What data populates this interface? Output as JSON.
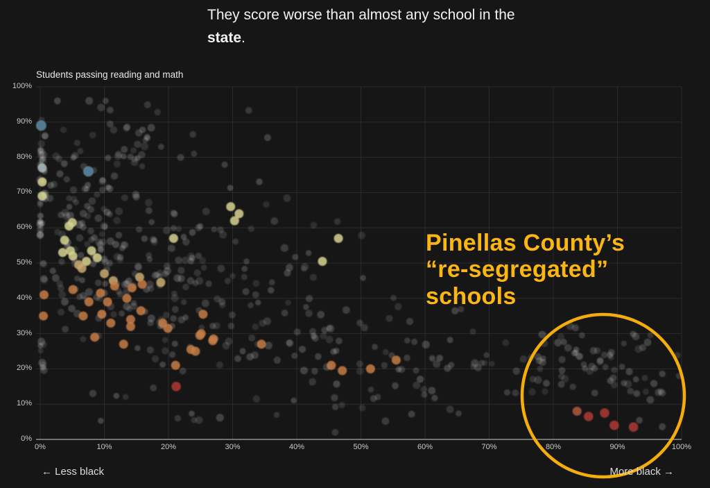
{
  "headline": {
    "before": "They score worse than almost any school in the ",
    "bold": "state",
    "after": "."
  },
  "annotation": {
    "lines": [
      "Pinellas County’s",
      "“re-segregated”",
      "schools"
    ],
    "color": "#FCB614",
    "circle_color": "#F4AD0B"
  },
  "chart_data": {
    "type": "scatter",
    "ylabel": "Students passing reading and math",
    "xlabel_left": "← Less black",
    "xlabel_right": "More black →",
    "xlim": [
      0,
      100
    ],
    "ylim": [
      0,
      100
    ],
    "grid": true,
    "x_ticks": [
      "0%",
      "10%",
      "20%",
      "30%",
      "40%",
      "50%",
      "60%",
      "70%",
      "80%",
      "90%",
      "100%"
    ],
    "y_ticks": [
      "0%",
      "10%",
      "20%",
      "30%",
      "40%",
      "50%",
      "60%",
      "70%",
      "80%",
      "90%",
      "100%"
    ],
    "point_colors": {
      "yellow": "#d6d291",
      "tan": "#c9aa6e",
      "orange": "#c67c46",
      "red": "#ae3a32",
      "orangered": "#b2573c",
      "blue": "#5d8ba3",
      "paleblue": "#a9bcbf",
      "background": "#ffffff"
    },
    "highlight_points": [
      {
        "x": 0.3,
        "y": 73,
        "c": "yellow"
      },
      {
        "x": 0.3,
        "y": 69,
        "c": "yellow"
      },
      {
        "x": 3.5,
        "y": 53,
        "c": "yellow"
      },
      {
        "x": 3.8,
        "y": 56.5,
        "c": "yellow"
      },
      {
        "x": 4.5,
        "y": 60.5,
        "c": "yellow"
      },
      {
        "x": 5.0,
        "y": 61.5,
        "c": "yellow"
      },
      {
        "x": 4.7,
        "y": 53.5,
        "c": "yellow"
      },
      {
        "x": 5.1,
        "y": 52,
        "c": "yellow"
      },
      {
        "x": 8.0,
        "y": 53.5,
        "c": "yellow"
      },
      {
        "x": 8.9,
        "y": 51.5,
        "c": "yellow"
      },
      {
        "x": 7.2,
        "y": 50.5,
        "c": "yellow"
      },
      {
        "x": 20.8,
        "y": 57,
        "c": "yellow"
      },
      {
        "x": 29.7,
        "y": 66,
        "c": "yellow"
      },
      {
        "x": 31.0,
        "y": 64,
        "c": "yellow"
      },
      {
        "x": 30.3,
        "y": 62,
        "c": "yellow"
      },
      {
        "x": 46.5,
        "y": 57,
        "c": "yellow"
      },
      {
        "x": 44.0,
        "y": 50.5,
        "c": "yellow"
      },
      {
        "x": 6.0,
        "y": 49.5,
        "c": "tan"
      },
      {
        "x": 6.5,
        "y": 48.5,
        "c": "tan"
      },
      {
        "x": 10.0,
        "y": 47,
        "c": "tan"
      },
      {
        "x": 11.4,
        "y": 45,
        "c": "tan"
      },
      {
        "x": 15.5,
        "y": 46,
        "c": "tan"
      },
      {
        "x": 18.8,
        "y": 44.5,
        "c": "tan"
      },
      {
        "x": 0.6,
        "y": 41,
        "c": "orange"
      },
      {
        "x": 0.5,
        "y": 35,
        "c": "orange"
      },
      {
        "x": 5.1,
        "y": 42.5,
        "c": "orange"
      },
      {
        "x": 9.4,
        "y": 41.5,
        "c": "orange"
      },
      {
        "x": 7.6,
        "y": 39,
        "c": "orange"
      },
      {
        "x": 10.5,
        "y": 39,
        "c": "orange"
      },
      {
        "x": 11.6,
        "y": 43.5,
        "c": "orange"
      },
      {
        "x": 13.5,
        "y": 40,
        "c": "orange"
      },
      {
        "x": 14.3,
        "y": 43,
        "c": "orange"
      },
      {
        "x": 15.9,
        "y": 44,
        "c": "orange"
      },
      {
        "x": 6.7,
        "y": 35,
        "c": "orange"
      },
      {
        "x": 9.6,
        "y": 35.5,
        "c": "orange"
      },
      {
        "x": 11.0,
        "y": 33,
        "c": "orange"
      },
      {
        "x": 14.1,
        "y": 34,
        "c": "orange"
      },
      {
        "x": 14.1,
        "y": 32,
        "c": "orange"
      },
      {
        "x": 15.7,
        "y": 36.5,
        "c": "orange"
      },
      {
        "x": 19.1,
        "y": 33,
        "c": "orange"
      },
      {
        "x": 19.9,
        "y": 31.5,
        "c": "orange"
      },
      {
        "x": 13.0,
        "y": 27,
        "c": "orange"
      },
      {
        "x": 8.5,
        "y": 29,
        "c": "orange"
      },
      {
        "x": 21.1,
        "y": 21,
        "c": "orange"
      },
      {
        "x": 24.2,
        "y": 25,
        "c": "orange"
      },
      {
        "x": 25.1,
        "y": 30,
        "c": "orange"
      },
      {
        "x": 25.4,
        "y": 35.5,
        "c": "orange"
      },
      {
        "x": 26.9,
        "y": 28,
        "c": "orange"
      },
      {
        "x": 23.5,
        "y": 25.5,
        "c": "orange"
      },
      {
        "x": 24.9,
        "y": 29.5,
        "c": "orange"
      },
      {
        "x": 27.0,
        "y": 28.5,
        "c": "orange"
      },
      {
        "x": 34.5,
        "y": 27,
        "c": "orange"
      },
      {
        "x": 45.4,
        "y": 21,
        "c": "orange"
      },
      {
        "x": 47.1,
        "y": 19.5,
        "c": "orange"
      },
      {
        "x": 51.5,
        "y": 20,
        "c": "orange"
      },
      {
        "x": 55.5,
        "y": 22.5,
        "c": "orange"
      },
      {
        "x": 21.2,
        "y": 15,
        "c": "red"
      },
      {
        "x": 83.7,
        "y": 8,
        "c": "orangered"
      },
      {
        "x": 85.5,
        "y": 6.5,
        "c": "red"
      },
      {
        "x": 88.0,
        "y": 7.5,
        "c": "red"
      },
      {
        "x": 89.5,
        "y": 4,
        "c": "red"
      },
      {
        "x": 92.5,
        "y": 3.5,
        "c": "red"
      },
      {
        "x": 0.15,
        "y": 89,
        "c": "blue"
      },
      {
        "x": 7.5,
        "y": 76,
        "c": "blue"
      },
      {
        "x": 0.3,
        "y": 77,
        "c": "paleblue"
      }
    ],
    "background_clusters": [
      {
        "type": "gauss",
        "cx": 7,
        "cy": 65,
        "sx": 5,
        "sy": 12,
        "n": 80
      },
      {
        "type": "gauss",
        "cx": 14,
        "cy": 50,
        "sx": 7,
        "sy": 10,
        "n": 70
      },
      {
        "type": "gauss",
        "cx": 20,
        "cy": 38,
        "sx": 8,
        "sy": 9,
        "n": 55
      },
      {
        "type": "gauss",
        "cx": 10,
        "cy": 80,
        "sx": 6,
        "sy": 7,
        "n": 40
      },
      {
        "type": "gauss",
        "cx": 28,
        "cy": 55,
        "sx": 8,
        "sy": 12,
        "n": 35
      },
      {
        "type": "gauss",
        "cx": 30,
        "cy": 25,
        "sx": 10,
        "sy": 8,
        "n": 30
      },
      {
        "type": "gauss",
        "cx": 45,
        "cy": 25,
        "sx": 10,
        "sy": 8,
        "n": 30
      },
      {
        "type": "gauss",
        "cx": 55,
        "cy": 17,
        "sx": 8,
        "sy": 6,
        "n": 20
      },
      {
        "type": "gauss",
        "cx": 42,
        "cy": 40,
        "sx": 9,
        "sy": 10,
        "n": 22
      },
      {
        "type": "gauss",
        "cx": 65,
        "cy": 26,
        "sx": 7,
        "sy": 6,
        "n": 25
      },
      {
        "type": "gauss",
        "cx": 85,
        "cy": 22,
        "sx": 7,
        "sy": 6,
        "n": 55
      },
      {
        "type": "gauss",
        "cx": 93,
        "cy": 20,
        "sx": 4,
        "sy": 5,
        "n": 22
      },
      {
        "type": "uniform",
        "x0": 0,
        "x1": 0.8,
        "y0": 18,
        "y1": 95,
        "n": 32
      },
      {
        "type": "uniform",
        "x0": 8,
        "x1": 38,
        "y0": 78,
        "y1": 95,
        "n": 14
      },
      {
        "type": "uniform",
        "x0": 5,
        "x1": 40,
        "y0": 4,
        "y1": 14,
        "n": 10
      }
    ]
  }
}
